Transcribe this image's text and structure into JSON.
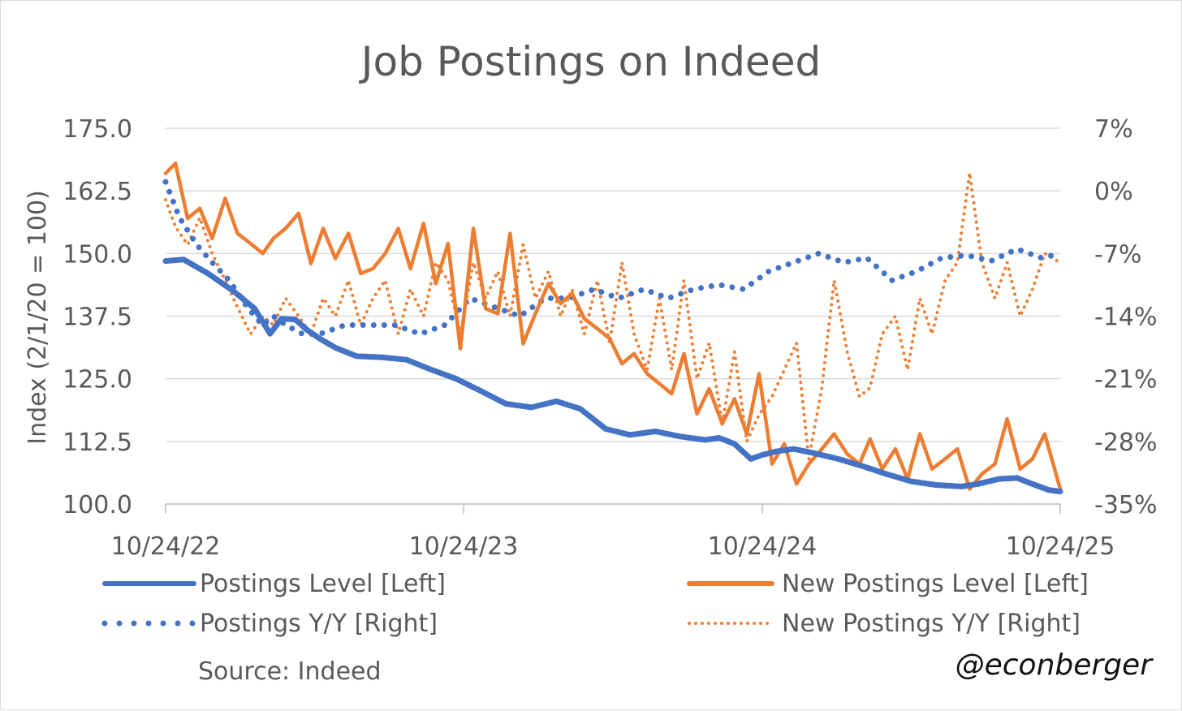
{
  "chart_data": {
    "type": "line",
    "title": "Job Postings on Indeed",
    "ylabel_left": "Index (2/1/20 = 100)",
    "ylabel_right": "",
    "x_ticks": [
      "10/24/22",
      "10/24/23",
      "10/24/24",
      "10/24/25"
    ],
    "x_range": [
      "10/24/22",
      "10/24/25"
    ],
    "y_left": {
      "range": [
        100,
        175
      ],
      "ticks": [
        "100.0",
        "112.5",
        "125.0",
        "137.5",
        "150.0",
        "162.5",
        "175.0"
      ]
    },
    "y_right": {
      "range": [
        -35,
        7
      ],
      "ticks": [
        "-35%",
        "-28%",
        "-21%",
        "-14%",
        "-7%",
        "0%",
        "7%"
      ]
    },
    "grid": true,
    "legend_position": "bottom",
    "colors": {
      "blue": "#4472C4",
      "orange": "#ED7D31",
      "text": "#595959",
      "grid": "#d9d9d9"
    },
    "source": "Source: Indeed",
    "credit": "@econberger",
    "series": [
      {
        "name": "Postings Level [Left]",
        "axis": "left",
        "style": "solid",
        "color": "#4472C4",
        "x": [
          "10/24/22",
          "11/15/22",
          "12/15/22",
          "1/15/23",
          "2/10/23",
          "3/1/23",
          "3/15/23",
          "4/1/23",
          "4/15/23",
          "5/1/23",
          "5/20/23",
          "6/15/23",
          "7/15/23",
          "8/15/23",
          "9/15/23",
          "10/15/23",
          "11/15/23",
          "12/15/23",
          "1/15/24",
          "2/15/24",
          "3/15/24",
          "4/15/24",
          "5/15/24",
          "6/15/24",
          "7/15/24",
          "8/15/24",
          "9/1/24",
          "9/20/24",
          "10/10/24",
          "10/24/24",
          "11/10/24",
          "12/1/24",
          "12/25/24",
          "1/25/25",
          "2/25/25",
          "3/25/25",
          "4/25/25",
          "5/25/25",
          "6/25/25",
          "7/15/25",
          "8/10/25",
          "9/1/25",
          "9/20/25",
          "10/10/25",
          "10/24/25"
        ],
        "values": [
          148.5,
          148.8,
          146,
          142.5,
          139,
          134,
          137,
          136.8,
          134.8,
          133,
          131.2,
          129.5,
          129.3,
          128.8,
          126.8,
          125,
          122.5,
          120,
          119.3,
          120.5,
          119,
          115,
          113.8,
          114.5,
          113.5,
          112.8,
          113.2,
          112,
          109,
          109.8,
          110.5,
          111,
          110.2,
          109,
          107.5,
          106,
          104.5,
          103.8,
          103.5,
          104,
          105,
          105.2,
          104,
          102.8,
          102.5
        ]
      },
      {
        "name": "New Postings Level [Left]",
        "axis": "left",
        "style": "solid",
        "color": "#ED7D31",
        "x": [
          "10/24/22",
          "11/5/22",
          "11/20/22",
          "12/5/22",
          "12/20/22",
          "1/5/23",
          "1/20/23",
          "2/5/23",
          "2/20/23",
          "3/5/23",
          "3/20/23",
          "4/5/23",
          "4/20/23",
          "5/5/23",
          "5/20/23",
          "6/5/23",
          "6/20/23",
          "7/5/23",
          "7/20/23",
          "8/5/23",
          "8/20/23",
          "9/5/23",
          "9/20/23",
          "10/5/23",
          "10/20/23",
          "11/5/23",
          "11/20/23",
          "12/5/23",
          "12/20/23",
          "1/5/24",
          "1/20/24",
          "2/5/24",
          "2/20/24",
          "3/5/24",
          "3/20/24",
          "4/5/24",
          "4/20/24",
          "5/5/24",
          "5/20/24",
          "6/5/24",
          "6/20/24",
          "7/5/24",
          "7/20/24",
          "8/5/24",
          "8/20/24",
          "9/5/24",
          "9/20/24",
          "10/5/24",
          "10/20/24",
          "11/5/24",
          "11/20/24",
          "12/5/24",
          "12/20/24",
          "1/5/25",
          "1/20/25",
          "2/5/25",
          "2/20/25",
          "3/5/25",
          "3/20/25",
          "4/5/25",
          "4/20/25",
          "5/5/25",
          "5/20/25",
          "6/5/25",
          "6/20/25",
          "7/5/25",
          "7/20/25",
          "8/5/25",
          "8/20/25",
          "9/5/25",
          "9/20/25",
          "10/5/25",
          "10/24/25"
        ],
        "values": [
          166,
          168,
          157,
          159,
          153,
          161,
          154,
          152,
          150,
          153,
          155,
          158,
          148,
          155,
          149,
          154,
          146,
          147,
          150,
          155,
          147,
          156,
          144,
          152,
          131,
          155,
          139,
          138,
          154,
          132,
          138,
          144,
          140,
          142,
          137,
          135,
          133,
          128,
          130,
          126,
          124,
          122,
          130,
          118,
          123,
          116,
          121,
          114,
          126,
          108,
          112,
          104,
          108,
          111,
          114,
          110,
          108,
          113,
          107,
          111,
          105,
          114,
          107,
          109,
          111,
          103,
          106,
          108,
          117,
          107,
          109,
          114,
          103
        ]
      },
      {
        "name": "Postings Y/Y [Right]",
        "axis": "right",
        "style": "dotted",
        "color": "#4472C4",
        "x": [
          "10/24/22",
          "11/10/22",
          "12/1/22",
          "12/20/22",
          "1/10/23",
          "2/1/23",
          "2/20/23",
          "3/5/23",
          "3/20/23",
          "4/10/23",
          "5/1/23",
          "6/1/23",
          "7/1/23",
          "8/1/23",
          "9/1/23",
          "10/1/23",
          "11/1/23",
          "12/1/23",
          "1/1/24",
          "2/1/24",
          "3/1/24",
          "4/1/24",
          "5/1/24",
          "6/1/24",
          "7/1/24",
          "8/1/24",
          "9/1/24",
          "10/1/24",
          "11/1/24",
          "12/1/24",
          "1/1/25",
          "2/1/25",
          "3/1/25",
          "4/1/25",
          "5/1/25",
          "6/1/25",
          "7/1/25",
          "8/1/25",
          "9/1/25",
          "10/1/25",
          "10/24/25"
        ],
        "values": [
          1,
          -3,
          -6,
          -8,
          -10,
          -13,
          -15,
          -14,
          -15,
          -16,
          -16,
          -15,
          -15,
          -15,
          -16,
          -15,
          -12,
          -13,
          -14,
          -12,
          -12,
          -11,
          -12,
          -11,
          -12,
          -11,
          -10.5,
          -11,
          -9,
          -8,
          -7,
          -8,
          -7.5,
          -10,
          -9,
          -7.5,
          -7.2,
          -7.8,
          -6.5,
          -7.5,
          -7
        ]
      },
      {
        "name": "New Postings Y/Y [Right]",
        "axis": "right",
        "style": "dotted",
        "color": "#ED7D31",
        "x": [
          "10/24/22",
          "11/5/22",
          "11/20/22",
          "12/5/22",
          "12/20/22",
          "1/5/23",
          "1/20/23",
          "2/5/23",
          "2/20/23",
          "3/5/23",
          "3/20/23",
          "4/5/23",
          "4/20/23",
          "5/5/23",
          "5/20/23",
          "6/5/23",
          "6/20/23",
          "7/5/23",
          "7/20/23",
          "8/5/23",
          "8/20/23",
          "9/5/23",
          "9/20/23",
          "10/5/23",
          "10/20/23",
          "11/5/23",
          "11/20/23",
          "12/5/23",
          "12/20/23",
          "1/5/24",
          "1/20/24",
          "2/5/24",
          "2/20/24",
          "3/5/24",
          "3/20/24",
          "4/5/24",
          "4/20/24",
          "5/5/24",
          "5/20/24",
          "6/5/24",
          "6/20/24",
          "7/5/24",
          "7/20/24",
          "8/5/24",
          "8/20/24",
          "9/5/24",
          "9/20/24",
          "10/5/24",
          "10/20/24",
          "11/5/24",
          "11/20/24",
          "12/5/24",
          "12/20/24",
          "1/5/25",
          "1/20/25",
          "2/5/25",
          "2/20/25",
          "3/5/25",
          "3/20/25",
          "4/5/25",
          "4/20/25",
          "5/5/25",
          "5/20/25",
          "6/5/25",
          "6/20/25",
          "7/5/25",
          "7/20/25",
          "8/5/25",
          "8/20/25",
          "9/5/25",
          "9/20/25",
          "10/5/25",
          "10/24/25"
        ],
        "values": [
          -1,
          -4,
          -6,
          -3,
          -7,
          -10,
          -13,
          -16,
          -14,
          -15,
          -12,
          -14,
          -16,
          -12,
          -14,
          -10,
          -15,
          -12,
          -10,
          -16,
          -11,
          -14,
          -8,
          -10,
          -16,
          -8,
          -12,
          -9,
          -14,
          -6,
          -12,
          -9,
          -14,
          -11,
          -16,
          -10,
          -17,
          -8,
          -16,
          -20,
          -12,
          -20,
          -10,
          -21,
          -17,
          -26,
          -18,
          -28,
          -25,
          -23,
          -20,
          -17,
          -30,
          -22,
          -10,
          -18,
          -23,
          -22,
          -16,
          -14,
          -20,
          -12,
          -16,
          -10,
          -8,
          2,
          -8,
          -12,
          -8,
          -14,
          -11,
          -7,
          -8
        ]
      }
    ]
  }
}
